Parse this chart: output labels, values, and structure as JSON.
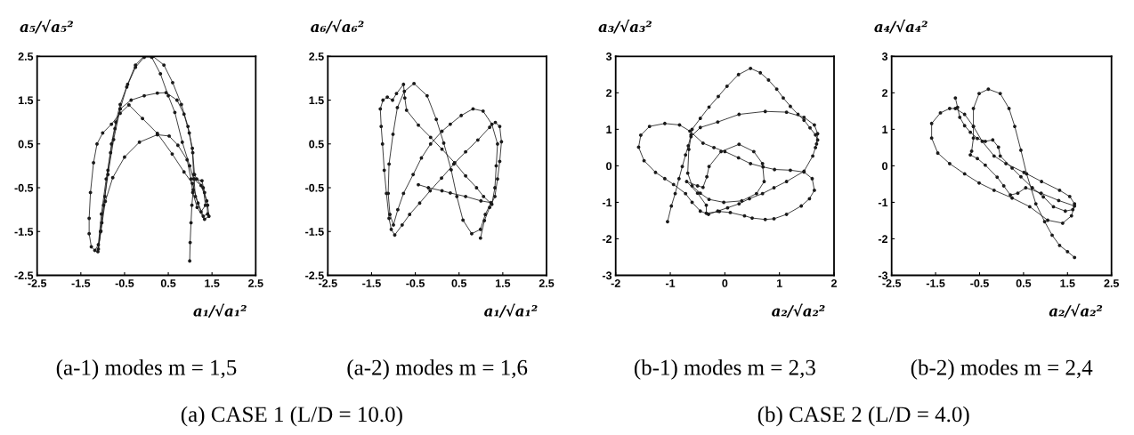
{
  "chart_data": [
    {
      "type": "line",
      "title": "(a-1) modes m = 1,5",
      "xlabel": "a₁/√a₁²",
      "ylabel": "a₅/√a₅²",
      "color": "#1a1a1a",
      "marker": "circle",
      "xlim": [
        -2.5,
        2.5
      ],
      "ylim": [
        -2.5,
        2.5
      ],
      "xticks": [
        -2.5,
        -1.5,
        -0.5,
        0.5,
        1.5,
        2.5
      ],
      "yticks": [
        -2.5,
        -1.5,
        -0.5,
        0.5,
        1.5,
        2.5
      ],
      "annotations": [
        "(a) CASE 1 (L/D = 10.0)"
      ],
      "x": [
        0.99,
        1.0,
        1.02,
        1.04,
        1.07,
        1.1,
        1.27,
        1.33,
        1.4,
        1.43,
        1.33,
        1.16,
        1.06,
        1.02,
        0.93,
        0.72,
        0.52,
        0.25,
        -0.16,
        -0.5,
        -0.77,
        -0.94,
        -1.04,
        -1.11,
        -1.02,
        -0.95,
        -0.88,
        -0.8,
        -0.7,
        -0.6,
        -0.43,
        -0.25,
        -0.06,
        0.12,
        0.32,
        0.5,
        0.65,
        0.82,
        0.99,
        1.08,
        1.25,
        1.38,
        1.4,
        1.3,
        1.18,
        1.05,
        0.86,
        0.59,
        0.25,
        -0.09,
        -0.4,
        -0.6,
        -0.8,
        -1.0,
        -1.13,
        -1.21,
        -1.28,
        -1.31,
        -1.31,
        -1.26,
        -1.18,
        -1.1,
        -1.03,
        -0.92,
        -0.82,
        -0.72,
        -0.6,
        -0.35,
        -0.05,
        0.25,
        0.45,
        0.7,
        0.86,
        0.98,
        1.06,
        1.1,
        1.15,
        1.3,
        1.35,
        1.25,
        1.12,
        1.08,
        1.05,
        0.95,
        0.8,
        0.6,
        0.4,
        0.15,
        -0.05,
        -0.25,
        -0.45,
        -0.6,
        -0.75,
        -0.88,
        -0.98,
        -1.05,
        -1.1
      ],
      "values": [
        -2.17,
        -1.75,
        -1.3,
        -0.9,
        -0.55,
        -0.3,
        -0.34,
        -0.61,
        -0.9,
        -1.15,
        -1.22,
        -0.95,
        -0.61,
        -0.3,
        0.14,
        0.47,
        0.68,
        0.71,
        0.54,
        0.2,
        -0.27,
        -0.81,
        -1.49,
        -1.96,
        -1.3,
        -0.7,
        -0.1,
        0.5,
        1.0,
        1.4,
        1.86,
        2.3,
        2.5,
        2.48,
        2.1,
        1.6,
        1.22,
        0.54,
        0.0,
        -0.3,
        -0.45,
        -0.8,
        -1.1,
        -1.15,
        -0.85,
        -0.4,
        -0.14,
        0.27,
        0.74,
        1.08,
        1.39,
        1.2,
        0.95,
        0.75,
        0.5,
        0.07,
        -0.61,
        -1.2,
        -1.55,
        -1.85,
        -1.93,
        -1.8,
        -1.1,
        -0.3,
        0.3,
        0.85,
        1.3,
        1.5,
        1.6,
        1.66,
        1.67,
        1.5,
        1.18,
        0.75,
        0.3,
        -0.2,
        -0.3,
        -0.5,
        -0.9,
        -1.05,
        -0.7,
        -0.2,
        0.4,
        0.9,
        1.4,
        1.9,
        2.3,
        2.5,
        2.48,
        2.25,
        1.8,
        1.3,
        0.6,
        -0.2,
        -0.9,
        -1.5,
        -1.9
      ]
    },
    {
      "type": "line",
      "title": "(a-2) modes m = 1,6",
      "xlabel": "a₁/√a₁²",
      "ylabel": "a₆/√a₆²",
      "color": "#1a1a1a",
      "marker": "circle",
      "xlim": [
        -2.5,
        2.5
      ],
      "ylim": [
        -2.5,
        2.5
      ],
      "xticks": [
        -2.5,
        -1.5,
        -0.5,
        0.5,
        1.5,
        2.5
      ],
      "yticks": [
        -2.5,
        -1.5,
        -0.5,
        0.5,
        1.5,
        2.5
      ],
      "x": [
        0.99,
        1.08,
        1.2,
        1.32,
        1.38,
        1.43,
        1.47,
        1.43,
        1.33,
        1.2,
        0.93,
        0.65,
        0.38,
        0.1,
        -0.16,
        -0.4,
        -0.63,
        -0.8,
        -0.97,
        -1.05,
        -1.1,
        -1.16,
        -1.21,
        -1.25,
        -1.28,
        -1.3,
        -1.24,
        -1.14,
        -1.02,
        -0.93,
        -0.77,
        -0.74,
        -0.7,
        -0.43,
        -0.15,
        0.11,
        0.4,
        0.65,
        0.9,
        1.06,
        1.25,
        1.32,
        1.35,
        1.38,
        1.25,
        1.05,
        0.82,
        0.55,
        0.3,
        0.11,
        -0.15,
        -0.36,
        -0.55,
        -0.77,
        -0.9,
        -1.0,
        -1.08,
        -1.12,
        -1.1,
        -1.01,
        -0.91,
        -0.75,
        -0.53,
        -0.23,
        -0.02,
        0.15,
        0.32,
        0.45,
        0.59,
        0.79,
        0.99,
        1.1,
        1.23,
        1.0,
        0.65,
        0.3,
        0.11,
        -0.2,
        -0.43
      ],
      "values": [
        -1.65,
        -1.25,
        -0.95,
        -0.7,
        -0.3,
        0.1,
        0.55,
        0.9,
        0.99,
        0.88,
        0.59,
        0.32,
        0.04,
        -0.28,
        -0.57,
        -0.85,
        -1.11,
        -1.35,
        -1.58,
        -1.45,
        -1.2,
        -0.63,
        -0.1,
        0.5,
        0.9,
        1.3,
        1.5,
        1.57,
        1.5,
        1.65,
        1.86,
        1.55,
        1.27,
        0.93,
        0.65,
        0.38,
        0.07,
        -0.23,
        -0.5,
        -0.7,
        -0.88,
        -0.5,
        0.0,
        0.5,
        0.95,
        1.25,
        1.3,
        1.15,
        0.95,
        0.79,
        0.5,
        0.18,
        -0.2,
        -0.63,
        -1.0,
        -1.35,
        -1.11,
        -0.63,
        0.04,
        0.72,
        1.33,
        1.7,
        1.88,
        1.6,
        1.06,
        0.52,
        -0.09,
        -0.7,
        -1.24,
        -1.55,
        -1.45,
        -1.11,
        -0.84,
        -0.8,
        -0.7,
        -0.62,
        -0.57,
        -0.5,
        -0.43
      ]
    },
    {
      "type": "line",
      "title": "(b-1) modes m = 2,3",
      "xlabel": "a₂/√a₂²",
      "ylabel": "a₃/√a₃²",
      "color": "#1a1a1a",
      "marker": "circle",
      "xlim": [
        -2,
        2
      ],
      "ylim": [
        -3,
        3
      ],
      "xticks": [
        -2,
        -1,
        0,
        1,
        2
      ],
      "yticks": [
        -3,
        -2,
        -1,
        0,
        1,
        2,
        3
      ],
      "annotations": [
        "(b) CASE 2 (L/D = 4.0)"
      ],
      "x": [
        -1.05,
        -0.98,
        -0.91,
        -0.84,
        -0.78,
        -0.72,
        -0.67,
        -0.62,
        -0.6,
        -0.45,
        -0.29,
        -0.12,
        0.04,
        0.25,
        0.47,
        0.65,
        0.8,
        0.95,
        1.07,
        1.2,
        1.34,
        1.45,
        1.56,
        1.66,
        1.7,
        1.66,
        1.61,
        1.45,
        1.13,
        0.9,
        0.69,
        0.45,
        0.26,
        0.05,
        -0.13,
        -0.3,
        -0.45,
        -0.6,
        -0.72,
        -0.94,
        -1.1,
        -1.27,
        -1.48,
        -1.58,
        -1.54,
        -1.38,
        -1.1,
        -0.83,
        -0.64,
        -0.4,
        -0.2,
        0.0,
        0.25,
        0.47,
        0.7,
        0.91,
        1.2,
        1.45,
        1.6,
        1.64,
        1.55,
        1.4,
        1.13,
        0.9,
        0.74,
        0.5,
        0.36,
        0.1,
        -0.1,
        -0.34,
        -0.34,
        -0.5,
        -0.7,
        -0.5,
        -0.4,
        -0.33,
        -0.29,
        -0.07,
        0.26,
        0.53,
        0.69,
        0.72,
        0.58,
        0.31,
        -0.02,
        -0.29,
        -0.45,
        -0.6,
        -0.68,
        -0.66,
        -0.62,
        -0.45,
        -0.13,
        0.26,
        0.74,
        1.13,
        1.45,
        1.64,
        1.7,
        1.68
      ],
      "values": [
        -1.53,
        -1.1,
        -0.76,
        -0.35,
        -0.02,
        0.3,
        0.55,
        0.85,
        1.0,
        1.3,
        1.61,
        1.9,
        2.18,
        2.5,
        2.67,
        2.55,
        2.35,
        2.1,
        1.86,
        1.63,
        1.41,
        1.25,
        1.04,
        0.85,
        0.71,
        0.5,
        0.27,
        -0.15,
        -0.43,
        -0.6,
        -0.76,
        -0.9,
        -1.04,
        -1.15,
        -1.24,
        -1.33,
        -1.24,
        -1.0,
        -0.76,
        -0.51,
        -0.35,
        -0.18,
        0.14,
        0.51,
        0.84,
        1.08,
        1.16,
        1.12,
        0.95,
        0.62,
        0.5,
        0.39,
        0.22,
        0.06,
        -0.03,
        -0.1,
        -0.12,
        -0.17,
        -0.35,
        -0.67,
        -0.9,
        -1.1,
        -1.33,
        -1.45,
        -1.47,
        -1.43,
        -1.37,
        -1.28,
        -1.25,
        -1.3,
        -1.08,
        -0.75,
        -0.43,
        -0.55,
        -0.59,
        -0.3,
        -0.02,
        0.39,
        0.59,
        0.39,
        0.06,
        -0.43,
        -0.76,
        -0.96,
        -1.0,
        -0.92,
        -0.75,
        -0.55,
        -0.2,
        0.45,
        0.8,
        1.05,
        1.2,
        1.41,
        1.49,
        1.47,
        1.33,
        1.12,
        0.88,
        0.6
      ]
    },
    {
      "type": "line",
      "title": "(b-2) modes m = 2,4",
      "xlabel": "a₂/√a₂²",
      "ylabel": "a₄/√a₄²",
      "color": "#1a1a1a",
      "marker": "circle",
      "xlim": [
        -2.5,
        2.5
      ],
      "ylim": [
        -3,
        3
      ],
      "xticks": [
        -2.5,
        -1.5,
        -0.5,
        0.5,
        1.5,
        2.5
      ],
      "yticks": [
        -3,
        -2,
        -1,
        0,
        1,
        2,
        3
      ],
      "x": [
        -1.05,
        -1.0,
        -0.95,
        -0.84,
        -0.71,
        -0.55,
        -0.37,
        -0.2,
        -0.07,
        -0.03,
        0.24,
        0.44,
        0.7,
        0.95,
        1.18,
        1.45,
        1.62,
        1.66,
        1.55,
        1.32,
        0.91,
        0.51,
        0.1,
        -0.17,
        -0.44,
        -0.64,
        -0.84,
        -1.05,
        -1.18,
        -1.39,
        -1.59,
        -1.59,
        -1.45,
        -1.18,
        -0.84,
        -0.51,
        -0.17,
        0.24,
        0.64,
        1.05,
        1.39,
        1.59,
        1.66,
        1.3,
        0.9,
        0.55,
        0.37,
        0.2,
        0.05,
        -0.1,
        -0.37,
        -0.55,
        -0.71,
        -0.68,
        -0.64,
        -0.64,
        -0.64,
        -0.51,
        -0.3,
        -0.03,
        0.17,
        0.3,
        0.44,
        0.57,
        0.78,
        0.98,
        1.15,
        1.32,
        1.5,
        1.66
      ],
      "values": [
        1.86,
        1.6,
        1.33,
        1.1,
        0.92,
        0.75,
        0.67,
        0.71,
        0.51,
        0.27,
        -0.06,
        -0.3,
        -0.6,
        -0.85,
        -1.12,
        -1.24,
        -1.2,
        -1.04,
        -0.84,
        -0.67,
        -0.43,
        -0.18,
        0.06,
        0.27,
        0.67,
        1.08,
        1.41,
        1.57,
        1.57,
        1.45,
        1.16,
        0.76,
        0.35,
        0.06,
        -0.22,
        -0.47,
        -0.67,
        -0.88,
        -1.12,
        -1.49,
        -1.57,
        -1.37,
        -1.1,
        -0.95,
        -0.75,
        -0.6,
        -0.75,
        -0.8,
        -0.55,
        -0.31,
        0.02,
        0.2,
        0.3,
        0.4,
        0.76,
        1.08,
        1.57,
        1.98,
        2.1,
        1.98,
        1.57,
        1.08,
        0.43,
        -0.22,
        -1.04,
        -1.53,
        -1.9,
        -2.18,
        -2.35,
        -2.51
      ]
    }
  ]
}
